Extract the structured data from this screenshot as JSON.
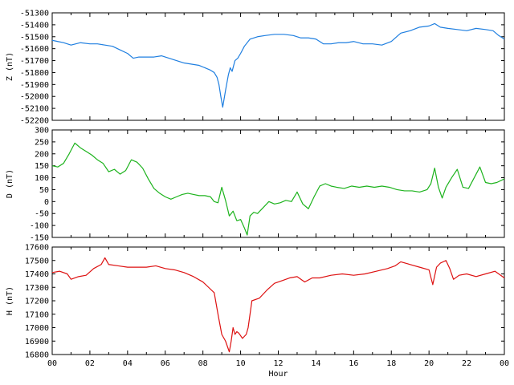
{
  "chart_data": [
    {
      "type": "line",
      "id": "z",
      "ylabel": "Z (nT)",
      "color": "#1f7fe0",
      "ylim": [
        -52200,
        -51300
      ],
      "yticks": [
        -51300,
        -51400,
        -51500,
        -51600,
        -51700,
        -51800,
        -51900,
        -52000,
        -52100,
        -52200
      ],
      "series": [
        {
          "x": [
            0,
            0.3,
            0.6,
            1.0,
            1.5,
            2.0,
            2.4,
            2.8,
            3.2,
            3.6,
            4.0,
            4.3,
            4.6,
            5.0,
            5.4,
            5.8,
            6.2,
            6.6,
            7.0,
            7.4,
            7.8,
            8.1,
            8.4,
            8.6,
            8.75,
            8.85,
            8.95,
            9.05,
            9.2,
            9.35,
            9.45,
            9.55,
            9.7,
            9.85,
            10.0,
            10.2,
            10.5,
            10.9,
            11.3,
            11.8,
            12.3,
            12.8,
            13.2,
            13.6,
            14.0,
            14.4,
            14.8,
            15.2,
            15.6,
            16.0,
            16.5,
            17.0,
            17.5,
            18.0,
            18.5,
            19.0,
            19.5,
            20.0,
            20.3,
            20.6,
            21.0,
            21.5,
            22.0,
            22.5,
            23.0,
            23.4,
            23.7,
            24.0
          ],
          "y": [
            -51530,
            -51540,
            -51550,
            -51570,
            -51550,
            -51560,
            -51560,
            -51570,
            -51580,
            -51610,
            -51640,
            -51680,
            -51670,
            -51670,
            -51670,
            -51660,
            -51680,
            -51700,
            -51720,
            -51730,
            -51740,
            -51760,
            -51780,
            -51800,
            -51840,
            -51900,
            -52000,
            -52090,
            -51950,
            -51820,
            -51760,
            -51790,
            -51700,
            -51680,
            -51640,
            -51580,
            -51520,
            -51500,
            -51490,
            -51480,
            -51480,
            -51490,
            -51510,
            -51510,
            -51520,
            -51560,
            -51560,
            -51550,
            -51550,
            -51540,
            -51560,
            -51560,
            -51570,
            -51540,
            -51470,
            -51450,
            -51420,
            -51410,
            -51390,
            -51420,
            -51430,
            -51440,
            -51450,
            -51430,
            -51440,
            -51450,
            -51490,
            -51520
          ]
        }
      ]
    },
    {
      "type": "line",
      "id": "d",
      "ylabel": "D (nT)",
      "color": "#1db31d",
      "ylim": [
        -150,
        300
      ],
      "yticks": [
        300,
        250,
        200,
        150,
        100,
        50,
        0,
        -50,
        -100,
        -150
      ],
      "series": [
        {
          "x": [
            0,
            0.3,
            0.6,
            0.9,
            1.2,
            1.5,
            1.8,
            2.1,
            2.4,
            2.7,
            3.0,
            3.3,
            3.6,
            3.9,
            4.2,
            4.5,
            4.8,
            5.1,
            5.4,
            5.7,
            6.0,
            6.3,
            6.6,
            6.9,
            7.2,
            7.5,
            7.8,
            8.1,
            8.4,
            8.6,
            8.8,
            9.0,
            9.2,
            9.4,
            9.6,
            9.8,
            10.0,
            10.2,
            10.35,
            10.5,
            10.7,
            10.9,
            11.2,
            11.5,
            11.8,
            12.1,
            12.4,
            12.7,
            13.0,
            13.3,
            13.6,
            13.9,
            14.2,
            14.5,
            14.8,
            15.1,
            15.5,
            15.9,
            16.3,
            16.7,
            17.1,
            17.5,
            17.9,
            18.3,
            18.7,
            19.1,
            19.5,
            19.9,
            20.1,
            20.3,
            20.5,
            20.7,
            20.9,
            21.2,
            21.5,
            21.8,
            22.1,
            22.4,
            22.7,
            23.0,
            23.3,
            23.6,
            24.0
          ],
          "y": [
            150,
            145,
            160,
            200,
            245,
            225,
            210,
            195,
            175,
            160,
            125,
            135,
            115,
            130,
            175,
            165,
            140,
            95,
            55,
            35,
            20,
            10,
            20,
            30,
            35,
            30,
            25,
            25,
            20,
            0,
            -5,
            60,
            5,
            -60,
            -40,
            -80,
            -75,
            -110,
            -140,
            -60,
            -45,
            -50,
            -25,
            0,
            -10,
            -5,
            5,
            0,
            40,
            -10,
            -30,
            20,
            65,
            75,
            65,
            60,
            55,
            65,
            60,
            65,
            60,
            65,
            60,
            50,
            45,
            45,
            40,
            50,
            75,
            140,
            60,
            15,
            60,
            100,
            135,
            60,
            55,
            100,
            145,
            80,
            75,
            80,
            95
          ]
        }
      ]
    },
    {
      "type": "line",
      "id": "h",
      "ylabel": "H (nT)",
      "xlabel": "Hour",
      "color": "#dd1111",
      "ylim": [
        16800,
        17600
      ],
      "yticks": [
        17600,
        17500,
        17400,
        17300,
        17200,
        17100,
        17000,
        16900,
        16800
      ],
      "xticks": [
        "00",
        "02",
        "04",
        "06",
        "08",
        "10",
        "12",
        "14",
        "16",
        "18",
        "20",
        "22",
        "00"
      ],
      "series": [
        {
          "x": [
            0,
            0.4,
            0.8,
            1.0,
            1.4,
            1.8,
            2.2,
            2.6,
            2.8,
            3.0,
            3.5,
            4.0,
            4.5,
            5.0,
            5.5,
            6.0,
            6.5,
            7.0,
            7.5,
            8.0,
            8.3,
            8.6,
            8.8,
            9.0,
            9.2,
            9.4,
            9.5,
            9.6,
            9.7,
            9.8,
            9.9,
            10.1,
            10.3,
            10.4,
            10.6,
            11.0,
            11.4,
            11.8,
            12.2,
            12.6,
            13.0,
            13.4,
            13.8,
            14.2,
            14.8,
            15.4,
            16.0,
            16.6,
            17.2,
            17.8,
            18.2,
            18.5,
            19.0,
            19.5,
            20.0,
            20.2,
            20.4,
            20.6,
            20.9,
            21.1,
            21.3,
            21.6,
            22.0,
            22.5,
            23.0,
            23.5,
            24.0
          ],
          "y": [
            17410,
            17420,
            17400,
            17360,
            17380,
            17390,
            17440,
            17470,
            17520,
            17470,
            17460,
            17450,
            17450,
            17450,
            17460,
            17440,
            17430,
            17410,
            17380,
            17340,
            17300,
            17260,
            17100,
            16950,
            16900,
            16820,
            16900,
            17000,
            16950,
            16970,
            16960,
            16920,
            16950,
            17000,
            17200,
            17220,
            17280,
            17330,
            17350,
            17370,
            17380,
            17340,
            17370,
            17370,
            17390,
            17400,
            17390,
            17400,
            17420,
            17440,
            17460,
            17490,
            17470,
            17450,
            17430,
            17320,
            17450,
            17480,
            17500,
            17440,
            17360,
            17390,
            17400,
            17380,
            17400,
            17420,
            17370
          ]
        }
      ]
    }
  ]
}
